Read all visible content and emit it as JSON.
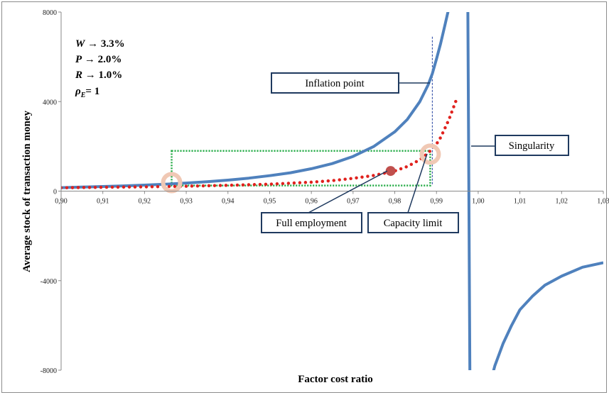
{
  "chart_data": {
    "type": "line",
    "title": "",
    "xlabel": "Factor cost ratio",
    "ylabel": "Average stock of transaction money",
    "xlim": [
      0.9,
      1.03
    ],
    "ylim": [
      -8000,
      8000
    ],
    "x_ticks": [
      "0,90",
      "0,91",
      "0,92",
      "0,93",
      "0,94",
      "0,95",
      "0,96",
      "0,97",
      "0,98",
      "0,99",
      "1,00",
      "1,01",
      "1,02",
      "1,03"
    ],
    "x_tick_values": [
      0.9,
      0.91,
      0.92,
      0.93,
      0.94,
      0.95,
      0.96,
      0.97,
      0.98,
      0.99,
      1.0,
      1.01,
      1.02,
      1.03
    ],
    "y_ticks": [
      "8000",
      "4000",
      "0",
      "-4000",
      "-8000"
    ],
    "y_tick_values": [
      8000,
      4000,
      0,
      -4000,
      -8000
    ],
    "grid": false,
    "legend": "none",
    "parameters": [
      {
        "sym": "W",
        "value": " → 3.3%"
      },
      {
        "sym": "P",
        "value": " → 2.0%"
      },
      {
        "sym": "R",
        "value": " → 1.0%"
      },
      {
        "sym": "ρ",
        "sub": "E",
        "value": "= 1"
      }
    ],
    "series": [
      {
        "style": "solid-blue",
        "color": "#4f81bd",
        "x": [
          0.9,
          0.905,
          0.91,
          0.915,
          0.92,
          0.925,
          0.93,
          0.935,
          0.94,
          0.945,
          0.95,
          0.955,
          0.96,
          0.965,
          0.97,
          0.975,
          0.98,
          0.983,
          0.986,
          0.988,
          0.989,
          0.99,
          0.991,
          0.992,
          0.993,
          0.994
        ],
        "y": [
          155,
          180,
          205,
          235,
          270,
          310,
          360,
          420,
          490,
          580,
          690,
          820,
          1000,
          1230,
          1550,
          2000,
          2650,
          3200,
          4000,
          4750,
          5250,
          5900,
          6600,
          7400,
          8200,
          9200
        ]
      },
      {
        "style": "solid-blue",
        "color": "#4f81bd",
        "x": [
          0.9975,
          0.998,
          0.9982
        ],
        "y": [
          8500,
          -8000,
          -8500
        ]
      },
      {
        "style": "solid-blue",
        "color": "#4f81bd",
        "x": [
          1.003,
          1.004,
          1.006,
          1.008,
          1.01,
          1.013,
          1.016,
          1.02,
          1.025,
          1.03
        ],
        "y": [
          -8500,
          -7800,
          -6800,
          -6000,
          -5300,
          -4700,
          -4200,
          -3800,
          -3400,
          -3200
        ]
      },
      {
        "style": "dotted-red",
        "color": "#e0211d",
        "x": [
          0.9,
          0.91,
          0.92,
          0.93,
          0.94,
          0.95,
          0.96,
          0.965,
          0.97,
          0.975,
          0.98,
          0.983,
          0.986,
          0.988,
          0.99,
          0.991,
          0.992,
          0.993,
          0.994,
          0.995
        ],
        "y": [
          150,
          170,
          190,
          220,
          260,
          310,
          400,
          470,
          570,
          700,
          900,
          1100,
          1400,
          1700,
          2100,
          2400,
          2800,
          3200,
          3700,
          4200
        ]
      }
    ],
    "reference_lines": [
      {
        "type": "vertical-dashed",
        "x": 0.989,
        "y_range": [
          300,
          6900
        ],
        "color": "#1f3f9f"
      },
      {
        "type": "green-dotted-rect",
        "x_range": [
          0.9265,
          0.9885
        ],
        "y_range": [
          250,
          1800
        ],
        "color": "#22aa44"
      }
    ],
    "markers": [
      {
        "kind": "halo",
        "x": 0.9265,
        "y": 380,
        "color": "#f0c8b4"
      },
      {
        "kind": "halo",
        "x": 0.9885,
        "y": 1650,
        "color": "#f0c8b4"
      },
      {
        "kind": "dot",
        "x": 0.979,
        "y": 900,
        "color": "#c0504d"
      }
    ],
    "annotations": [
      {
        "text": "Inflation point",
        "target": [
          0.9895,
          4950
        ]
      },
      {
        "text": "Singularity",
        "target": [
          0.999,
          1950
        ]
      },
      {
        "text": "Full employment",
        "target": [
          0.979,
          900
        ]
      },
      {
        "text": "Capacity limit",
        "target": [
          0.9885,
          1650
        ]
      }
    ]
  }
}
